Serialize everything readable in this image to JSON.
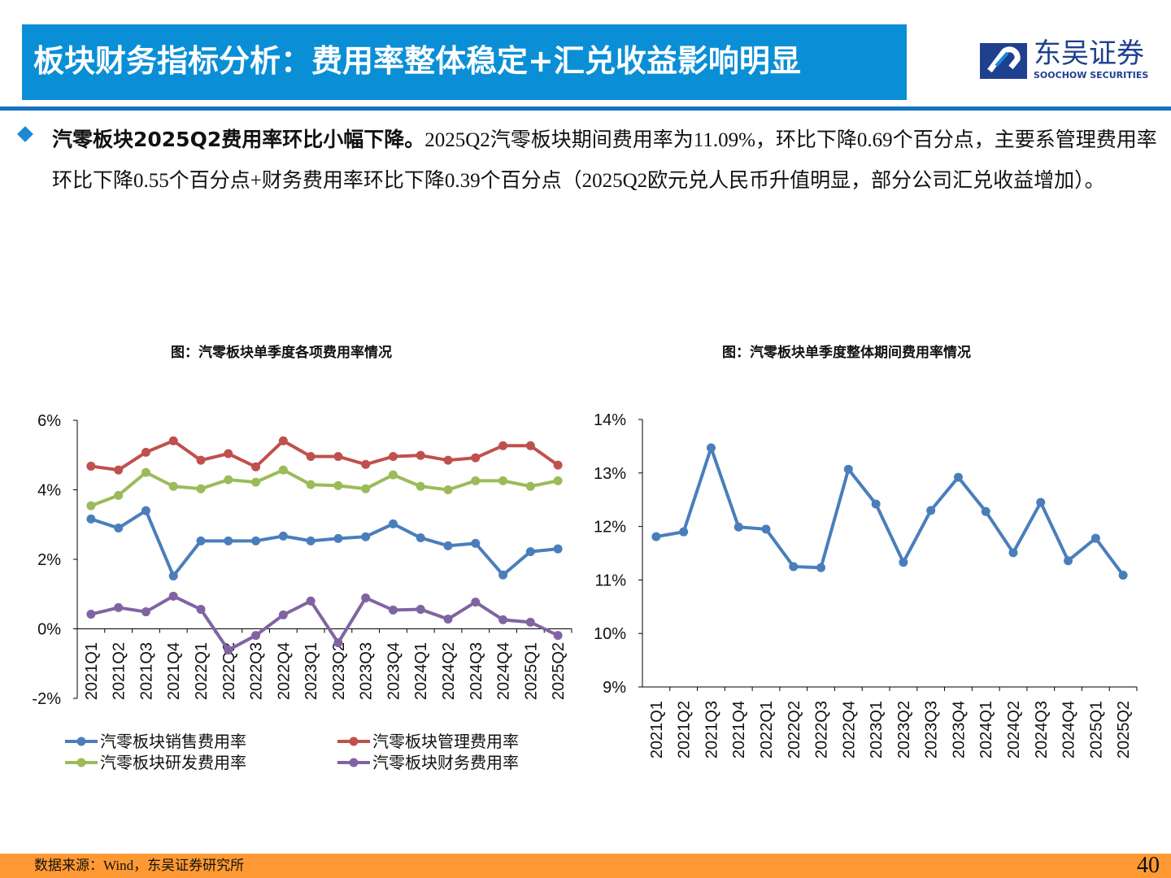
{
  "header": {
    "title": "板块财务指标分析：费用率整体稳定+汇兑收益影响明显"
  },
  "logo": {
    "cn": "东吴证券",
    "en": "SOOCHOW SECURITIES"
  },
  "body": {
    "bold": "汽零板块2025Q2费用率环比小幅下降。",
    "text": "2025Q2汽零板块期间费用率为11.09%，环比下降0.69个百分点，主要系管理费用率环比下降0.55个百分点+财务费用率环比下降0.39个百分点（2025Q2欧元兑人民币升值明显，部分公司汇兑收益增加）。"
  },
  "colors": {
    "accent": "#0a8fd6",
    "footer": "#ff9933",
    "sales": "#4a7ebb",
    "mgmt": "#c0504d",
    "rd": "#9bbb59",
    "fin": "#8064a2"
  },
  "chart_data": [
    {
      "type": "line",
      "title": "图：汽零板块单季度各项费用率情况",
      "categories": [
        "2021Q1",
        "2021Q2",
        "2021Q3",
        "2021Q4",
        "2022Q1",
        "2022Q2",
        "2022Q3",
        "2022Q4",
        "2023Q1",
        "2023Q2",
        "2023Q3",
        "2023Q4",
        "2024Q1",
        "2024Q2",
        "2024Q3",
        "2024Q4",
        "2025Q1",
        "2025Q2"
      ],
      "yticks": [
        "-2%",
        "0%",
        "2%",
        "4%",
        "6%"
      ],
      "ylim": [
        -2,
        6
      ],
      "legend": "bottom",
      "series": [
        {
          "name": "汽零板块销售费用率",
          "color": "#4a7ebb",
          "values": [
            3.16,
            2.9,
            3.4,
            1.52,
            2.53,
            2.53,
            2.53,
            2.67,
            2.53,
            2.6,
            2.65,
            3.02,
            2.62,
            2.39,
            2.46,
            1.55,
            2.22,
            2.3
          ]
        },
        {
          "name": "汽零板块管理费用率",
          "color": "#c0504d",
          "values": [
            4.68,
            4.57,
            5.08,
            5.41,
            4.85,
            5.04,
            4.66,
            5.41,
            4.96,
            4.96,
            4.73,
            4.96,
            4.99,
            4.85,
            4.92,
            5.27,
            5.27,
            4.71
          ]
        },
        {
          "name": "汽零板块研发费用率",
          "color": "#9bbb59",
          "values": [
            3.54,
            3.84,
            4.5,
            4.1,
            4.03,
            4.29,
            4.22,
            4.57,
            4.15,
            4.12,
            4.03,
            4.43,
            4.1,
            4.0,
            4.26,
            4.26,
            4.1,
            4.26
          ]
        },
        {
          "name": "汽零板块财务费用率",
          "color": "#8064a2",
          "values": [
            0.42,
            0.61,
            0.49,
            0.94,
            0.56,
            -0.61,
            -0.19,
            0.4,
            0.8,
            -0.4,
            0.89,
            0.54,
            0.56,
            0.28,
            0.77,
            0.26,
            0.19,
            -0.19
          ]
        }
      ]
    },
    {
      "type": "line",
      "title": "图：汽零板块单季度整体期间费用率情况",
      "categories": [
        "2021Q1",
        "2021Q2",
        "2021Q3",
        "2021Q4",
        "2022Q1",
        "2022Q2",
        "2022Q3",
        "2022Q4",
        "2023Q1",
        "2023Q2",
        "2023Q3",
        "2023Q4",
        "2024Q1",
        "2024Q2",
        "2024Q3",
        "2024Q4",
        "2025Q1",
        "2025Q2"
      ],
      "yticks": [
        "9%",
        "10%",
        "11%",
        "12%",
        "13%",
        "14%"
      ],
      "ylim": [
        9,
        14
      ],
      "series": [
        {
          "color": "#4a7ebb",
          "values": [
            11.81,
            11.9,
            13.47,
            11.99,
            11.95,
            11.25,
            11.23,
            13.07,
            12.42,
            11.33,
            12.3,
            12.92,
            12.28,
            11.51,
            12.45,
            11.36,
            11.78,
            11.09
          ]
        }
      ]
    }
  ],
  "footer": {
    "source": "数据来源：Wind，东吴证券研究所",
    "page": "40"
  }
}
